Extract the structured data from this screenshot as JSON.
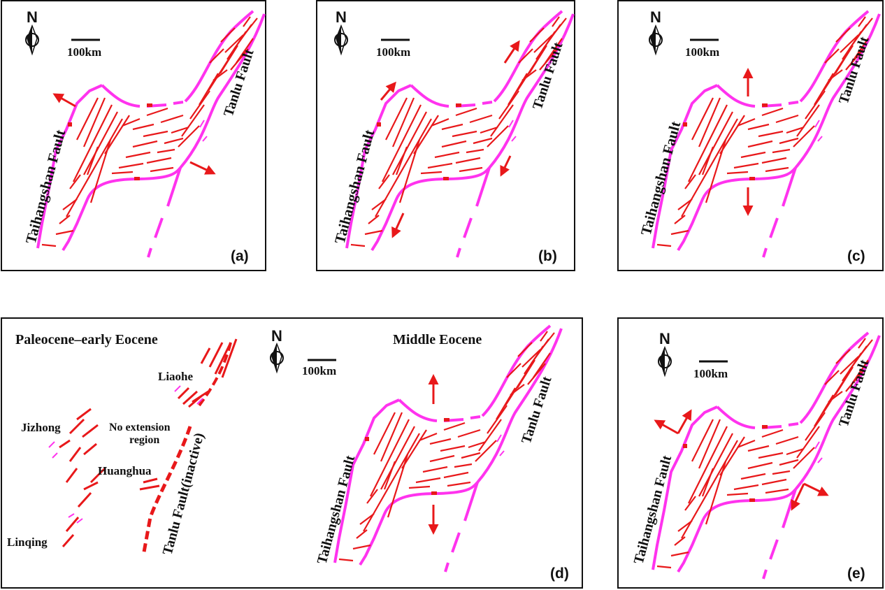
{
  "panels": [
    {
      "id": "a",
      "tag": "(a)",
      "west_fault": "Taihangshan  Fault",
      "east_fault": "Tanlu Fault",
      "scale": "100km",
      "north": "N"
    },
    {
      "id": "b",
      "tag": "(b)",
      "west_fault": "Taihangshan  Fault",
      "east_fault": "Tanlu Fault",
      "scale": "100km",
      "north": "N"
    },
    {
      "id": "c",
      "tag": "(c)",
      "west_fault": "Taihangshan  Fault",
      "east_fault": "Tanlu Fault",
      "scale": "100km",
      "north": "N"
    },
    {
      "id": "d",
      "tag": "(d)",
      "west_fault": "Taihangshan Fault",
      "east_fault": "Tanlu Fault",
      "scale": "100km",
      "north": "N"
    },
    {
      "id": "e",
      "tag": "(e)",
      "west_fault": "Taihangshan Fault",
      "east_fault": "Tanlu Fault",
      "scale": "100km",
      "north": "N"
    }
  ],
  "panel_d": {
    "left_title": "Paleocene–early Eocene",
    "right_title": "Middle Eocene",
    "basins": [
      "Liaohe",
      "Jizhong",
      "Huanghua",
      "Linqing"
    ],
    "no_extension_line1": "No extension",
    "no_extension_line2": "region",
    "inactive_fault": "Tanlu Fault(inactive)"
  },
  "colors": {
    "boundary_fault": "#ff33ee",
    "normal_fault": "#e8181a",
    "frame": "#111111"
  }
}
